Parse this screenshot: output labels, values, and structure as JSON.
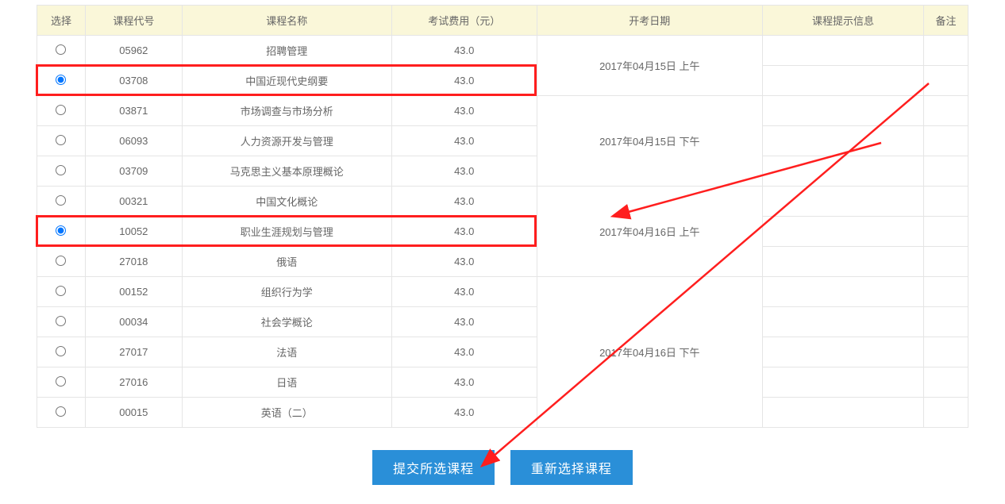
{
  "columns": {
    "select": "选择",
    "code": "课程代号",
    "name": "课程名称",
    "fee": "考试费用（元）",
    "date": "开考日期",
    "hint": "课程提示信息",
    "remark": "备注"
  },
  "col_widths": {
    "select": 60,
    "code": 120,
    "name": 260,
    "fee": 180,
    "date": 280,
    "hint": 200,
    "remark": 55
  },
  "exam_dates": {
    "g1": "2017年04月15日 上午",
    "g2": "2017年04月15日 下午",
    "g3": "2017年04月16日 上午",
    "g4": "2017年04月16日 下午"
  },
  "rows": [
    {
      "code": "05962",
      "name": "招聘管理",
      "fee": "43.0",
      "group": "g1",
      "checked": false
    },
    {
      "code": "03708",
      "name": "中国近现代史纲要",
      "fee": "43.0",
      "group": "g1",
      "checked": true
    },
    {
      "code": "03871",
      "name": "市场调查与市场分析",
      "fee": "43.0",
      "group": "g2",
      "checked": false
    },
    {
      "code": "06093",
      "name": "人力资源开发与管理",
      "fee": "43.0",
      "group": "g2",
      "checked": false
    },
    {
      "code": "03709",
      "name": "马克思主义基本原理概论",
      "fee": "43.0",
      "group": "g2",
      "checked": false
    },
    {
      "code": "00321",
      "name": "中国文化概论",
      "fee": "43.0",
      "group": "g3",
      "checked": false
    },
    {
      "code": "10052",
      "name": "职业生涯规划与管理",
      "fee": "43.0",
      "group": "g3",
      "checked": true
    },
    {
      "code": "27018",
      "name": "俄语",
      "fee": "43.0",
      "group": "g3",
      "checked": false
    },
    {
      "code": "00152",
      "name": "组织行为学",
      "fee": "43.0",
      "group": "g4",
      "checked": false
    },
    {
      "code": "00034",
      "name": "社会学概论",
      "fee": "43.0",
      "group": "g4",
      "checked": false
    },
    {
      "code": "27017",
      "name": "法语",
      "fee": "43.0",
      "group": "g4",
      "checked": false
    },
    {
      "code": "27016",
      "name": "日语",
      "fee": "43.0",
      "group": "g4",
      "checked": false
    },
    {
      "code": "00015",
      "name": "英语（二）",
      "fee": "43.0",
      "group": "g4",
      "checked": false
    }
  ],
  "buttons": {
    "submit": "提交所选课程",
    "reset": "重新选择课程"
  },
  "highlight_rows": [
    1,
    6
  ]
}
